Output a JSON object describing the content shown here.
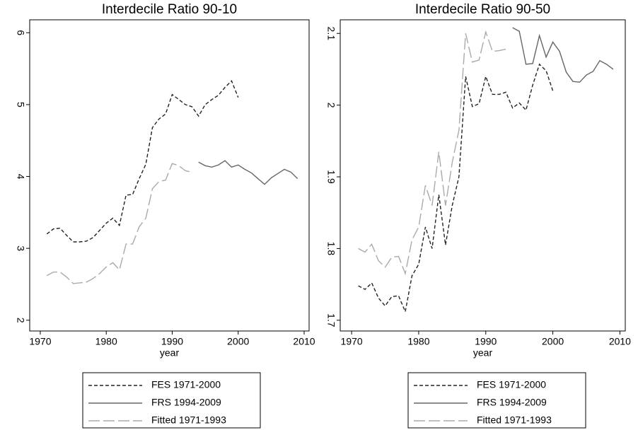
{
  "chart_data": [
    {
      "type": "line",
      "title": "Interdecile Ratio 90-10",
      "xlabel": "year",
      "xlim": [
        1968.4,
        2010.75
      ],
      "xticks": [
        1970,
        1980,
        1990,
        2000,
        2010
      ],
      "ylim": [
        1.85,
        6.18
      ],
      "yticks": [
        2,
        3,
        4,
        5,
        6
      ],
      "series": [
        {
          "name": "FES 1971-2000",
          "color": "#222222",
          "dash": "short",
          "x": [
            1971,
            1972,
            1973,
            1974,
            1975,
            1976,
            1977,
            1978,
            1979,
            1980,
            1981,
            1982,
            1983,
            1984,
            1985,
            1986,
            1987,
            1988,
            1989,
            1990,
            1991,
            1992,
            1993,
            1994,
            1995,
            1996,
            1997,
            1998,
            1999,
            2000
          ],
          "values": [
            3.2,
            3.27,
            3.28,
            3.18,
            3.09,
            3.09,
            3.1,
            3.15,
            3.25,
            3.35,
            3.42,
            3.32,
            3.74,
            3.75,
            3.97,
            4.17,
            4.68,
            4.8,
            4.87,
            5.14,
            5.07,
            5.0,
            4.97,
            4.84,
            5.0,
            5.07,
            5.13,
            5.24,
            5.33,
            5.1
          ]
        },
        {
          "name": "FRS 1994-2009",
          "color": "#666666",
          "dash": "solid",
          "x": [
            1994,
            1995,
            1996,
            1997,
            1998,
            1999,
            2000,
            2001,
            2002,
            2003,
            2004,
            2005,
            2006,
            2007,
            2008,
            2009
          ],
          "values": [
            4.2,
            4.15,
            4.13,
            4.16,
            4.22,
            4.13,
            4.16,
            4.1,
            4.05,
            3.97,
            3.89,
            3.98,
            4.04,
            4.1,
            4.06,
            3.97
          ]
        },
        {
          "name": "Fitted 1971-1993",
          "color": "#aaaaaa",
          "dash": "long",
          "x": [
            1971,
            1972,
            1973,
            1974,
            1975,
            1976,
            1977,
            1978,
            1979,
            1980,
            1981,
            1982,
            1983,
            1984,
            1985,
            1986,
            1987,
            1988,
            1989,
            1990,
            1991,
            1992,
            1993
          ],
          "values": [
            2.62,
            2.67,
            2.67,
            2.6,
            2.51,
            2.52,
            2.53,
            2.58,
            2.65,
            2.74,
            2.8,
            2.7,
            3.06,
            3.06,
            3.3,
            3.42,
            3.83,
            3.93,
            3.95,
            4.18,
            4.15,
            4.08,
            4.06
          ]
        }
      ]
    },
    {
      "type": "line",
      "title": "Interdecile Ratio 90-50",
      "xlabel": "year",
      "xlim": [
        1968.3,
        2010.8
      ],
      "xticks": [
        1970,
        1980,
        1990,
        2000,
        2010
      ],
      "ylim": [
        1.685,
        2.119
      ],
      "yticks": [
        1.7,
        1.8,
        1.9,
        2,
        2.1
      ],
      "series": [
        {
          "name": "FES 1971-2000",
          "color": "#222222",
          "dash": "short",
          "x": [
            1971,
            1972,
            1973,
            1974,
            1975,
            1976,
            1977,
            1978,
            1979,
            1980,
            1981,
            1982,
            1983,
            1984,
            1985,
            1986,
            1987,
            1988,
            1989,
            1990,
            1991,
            1992,
            1993,
            1994,
            1995,
            1996,
            1997,
            1998,
            1999,
            2000
          ],
          "values": [
            1.748,
            1.743,
            1.752,
            1.731,
            1.72,
            1.733,
            1.734,
            1.712,
            1.762,
            1.778,
            1.83,
            1.8,
            1.875,
            1.805,
            1.86,
            1.9,
            2.04,
            1.998,
            2.002,
            2.04,
            2.015,
            2.015,
            2.018,
            1.996,
            2.003,
            1.993,
            2.028,
            2.057,
            2.048,
            2.02
          ]
        },
        {
          "name": "FRS 1994-2009",
          "color": "#666666",
          "dash": "solid",
          "x": [
            1994,
            1995,
            1996,
            1997,
            1998,
            1999,
            2000,
            2001,
            2002,
            2003,
            2004,
            2005,
            2006,
            2007,
            2008,
            2009
          ],
          "values": [
            2.108,
            2.103,
            2.057,
            2.058,
            2.097,
            2.067,
            2.088,
            2.075,
            2.046,
            2.033,
            2.032,
            2.042,
            2.047,
            2.062,
            2.057,
            2.05
          ]
        },
        {
          "name": "Fitted 1971-1993",
          "color": "#aaaaaa",
          "dash": "long",
          "x": [
            1971,
            1972,
            1973,
            1974,
            1975,
            1976,
            1977,
            1978,
            1979,
            1980,
            1981,
            1982,
            1983,
            1984,
            1985,
            1986,
            1987,
            1988,
            1989,
            1990,
            1991,
            1992,
            1993
          ],
          "values": [
            1.8,
            1.795,
            1.806,
            1.783,
            1.774,
            1.788,
            1.789,
            1.765,
            1.812,
            1.83,
            1.888,
            1.86,
            1.935,
            1.86,
            1.92,
            1.965,
            2.1,
            2.06,
            2.063,
            2.102,
            2.075,
            2.076,
            2.078
          ]
        }
      ]
    }
  ]
}
